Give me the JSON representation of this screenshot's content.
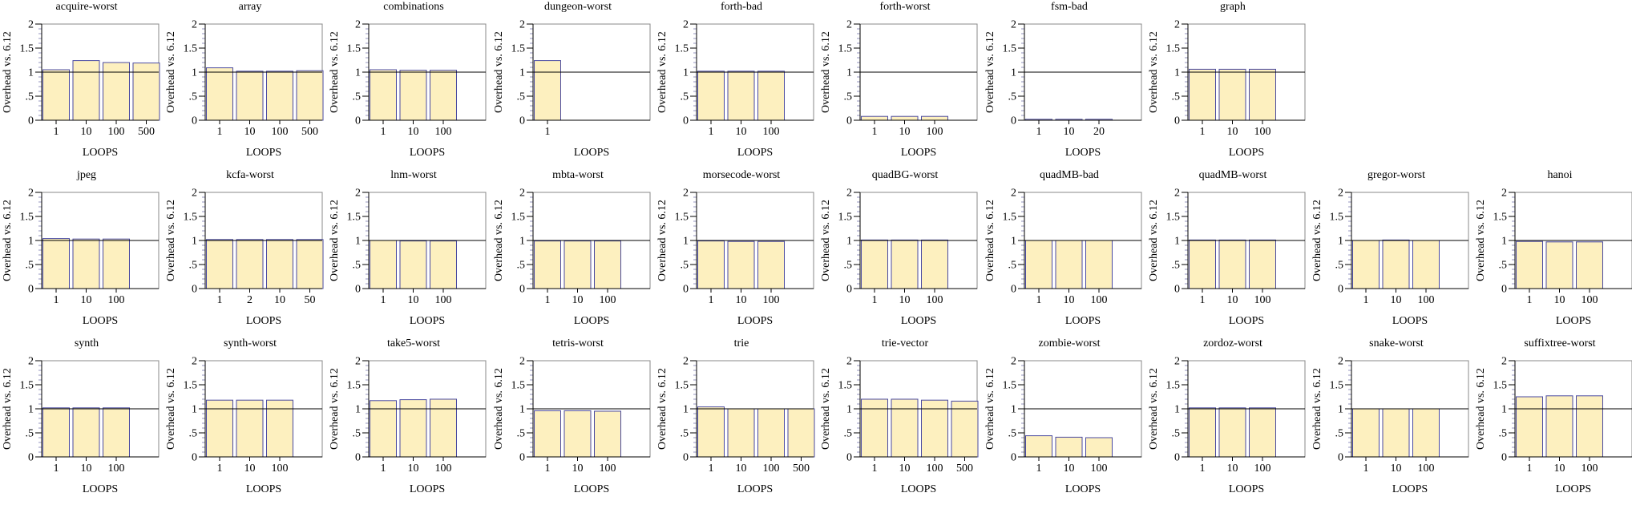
{
  "chart_data": [
    {
      "type": "bar",
      "title": "acquire-worst",
      "xlabel": "LOOPS",
      "ylabel": "Overhead vs. 6.12",
      "ylim": [
        0,
        2
      ],
      "yticks": [
        "0",
        ".5",
        "1",
        "1.5",
        "2"
      ],
      "categories": [
        "1",
        "10",
        "100",
        "500"
      ],
      "values": [
        1.05,
        1.24,
        1.2,
        1.19
      ],
      "reference_line": 1
    },
    {
      "type": "bar",
      "title": "array",
      "xlabel": "LOOPS",
      "ylabel": "Overhead vs. 6.12",
      "ylim": [
        0,
        2
      ],
      "yticks": [
        "0",
        ".5",
        "1",
        "1.5",
        "2"
      ],
      "categories": [
        "1",
        "10",
        "100",
        "500"
      ],
      "values": [
        1.09,
        1.02,
        1.02,
        1.03
      ],
      "reference_line": 1
    },
    {
      "type": "bar",
      "title": "combinations",
      "xlabel": "LOOPS",
      "ylabel": "Overhead vs. 6.12",
      "ylim": [
        0,
        2
      ],
      "yticks": [
        "0",
        ".5",
        "1",
        "1.5",
        "2"
      ],
      "categories": [
        "1",
        "10",
        "100"
      ],
      "values": [
        1.05,
        1.04,
        1.04
      ],
      "reference_line": 1
    },
    {
      "type": "bar",
      "title": "dungeon-worst",
      "xlabel": "LOOPS",
      "ylabel": "Overhead vs. 6.12",
      "ylim": [
        0,
        2
      ],
      "yticks": [
        "0",
        ".5",
        "1",
        "1.5",
        "2"
      ],
      "categories": [
        "1"
      ],
      "values": [
        1.24
      ],
      "reference_line": 1
    },
    {
      "type": "bar",
      "title": "forth-bad",
      "xlabel": "LOOPS",
      "ylabel": "Overhead vs. 6.12",
      "ylim": [
        0,
        2
      ],
      "yticks": [
        "0",
        ".5",
        "1",
        "1.5",
        "2"
      ],
      "categories": [
        "1",
        "10",
        "100"
      ],
      "values": [
        1.02,
        1.02,
        1.02
      ],
      "reference_line": 1
    },
    {
      "type": "bar",
      "title": "forth-worst",
      "xlabel": "LOOPS",
      "ylabel": "Overhead vs. 6.12",
      "ylim": [
        0,
        2
      ],
      "yticks": [
        "0",
        ".5",
        "1",
        "1.5",
        "2"
      ],
      "categories": [
        "1",
        "10",
        "100"
      ],
      "values": [
        0.08,
        0.08,
        0.08
      ],
      "reference_line": 1
    },
    {
      "type": "bar",
      "title": "fsm-bad",
      "xlabel": "LOOPS",
      "ylabel": "Overhead vs. 6.12",
      "ylim": [
        0,
        2
      ],
      "yticks": [
        "0",
        ".5",
        "1",
        "1.5",
        "2"
      ],
      "categories": [
        "1",
        "10",
        "20"
      ],
      "values": [
        0.02,
        0.02,
        0.02
      ],
      "reference_line": 1
    },
    {
      "type": "bar",
      "title": "graph",
      "xlabel": "LOOPS",
      "ylabel": "Overhead vs. 6.12",
      "ylim": [
        0,
        2
      ],
      "yticks": [
        "0",
        ".5",
        "1",
        "1.5",
        "2"
      ],
      "categories": [
        "1",
        "10",
        "100"
      ],
      "values": [
        1.06,
        1.06,
        1.06
      ],
      "reference_line": 1
    },
    {
      "type": "bar",
      "title": "jpeg",
      "xlabel": "LOOPS",
      "ylabel": "Overhead vs. 6.12",
      "ylim": [
        0,
        2
      ],
      "yticks": [
        "0",
        ".5",
        "1",
        "1.5",
        "2"
      ],
      "categories": [
        "1",
        "10",
        "100"
      ],
      "values": [
        1.04,
        1.03,
        1.03
      ],
      "reference_line": 1
    },
    {
      "type": "bar",
      "title": "kcfa-worst",
      "xlabel": "LOOPS",
      "ylabel": "Overhead vs. 6.12",
      "ylim": [
        0,
        2
      ],
      "yticks": [
        "0",
        ".5",
        "1",
        "1.5",
        "2"
      ],
      "categories": [
        "1",
        "2",
        "10",
        "50"
      ],
      "values": [
        1.02,
        1.02,
        1.02,
        1.02
      ],
      "reference_line": 1
    },
    {
      "type": "bar",
      "title": "lnm-worst",
      "xlabel": "LOOPS",
      "ylabel": "Overhead vs. 6.12",
      "ylim": [
        0,
        2
      ],
      "yticks": [
        "0",
        ".5",
        "1",
        "1.5",
        "2"
      ],
      "categories": [
        "1",
        "10",
        "100"
      ],
      "values": [
        1.0,
        0.99,
        0.99
      ],
      "reference_line": 1
    },
    {
      "type": "bar",
      "title": "mbta-worst",
      "xlabel": "LOOPS",
      "ylabel": "Overhead vs. 6.12",
      "ylim": [
        0,
        2
      ],
      "yticks": [
        "0",
        ".5",
        "1",
        "1.5",
        "2"
      ],
      "categories": [
        "1",
        "10",
        "100"
      ],
      "values": [
        0.99,
        0.99,
        0.99
      ],
      "reference_line": 1
    },
    {
      "type": "bar",
      "title": "morsecode-worst",
      "xlabel": "LOOPS",
      "ylabel": "Overhead vs. 6.12",
      "ylim": [
        0,
        2
      ],
      "yticks": [
        "0",
        ".5",
        "1",
        "1.5",
        "2"
      ],
      "categories": [
        "1",
        "10",
        "100"
      ],
      "values": [
        0.99,
        0.98,
        0.98
      ],
      "reference_line": 1
    },
    {
      "type": "bar",
      "title": "quadBG-worst",
      "xlabel": "LOOPS",
      "ylabel": "Overhead vs. 6.12",
      "ylim": [
        0,
        2
      ],
      "yticks": [
        "0",
        ".5",
        "1",
        "1.5",
        "2"
      ],
      "categories": [
        "1",
        "10",
        "100"
      ],
      "values": [
        1.01,
        1.01,
        1.01
      ],
      "reference_line": 1
    },
    {
      "type": "bar",
      "title": "quadMB-bad",
      "xlabel": "LOOPS",
      "ylabel": "Overhead vs. 6.12",
      "ylim": [
        0,
        2
      ],
      "yticks": [
        "0",
        ".5",
        "1",
        "1.5",
        "2"
      ],
      "categories": [
        "1",
        "10",
        "100"
      ],
      "values": [
        1.0,
        1.0,
        1.0
      ],
      "reference_line": 1
    },
    {
      "type": "bar",
      "title": "quadMB-worst",
      "xlabel": "LOOPS",
      "ylabel": "Overhead vs. 6.12",
      "ylim": [
        0,
        2
      ],
      "yticks": [
        "0",
        ".5",
        "1",
        "1.5",
        "2"
      ],
      "categories": [
        "1",
        "10",
        "100"
      ],
      "values": [
        1.01,
        1.01,
        1.01
      ],
      "reference_line": 1
    },
    {
      "type": "bar",
      "title": "gregor-worst",
      "xlabel": "LOOPS",
      "ylabel": "Overhead vs. 6.12",
      "ylim": [
        0,
        2
      ],
      "yticks": [
        "0",
        ".5",
        "1",
        "1.5",
        "2"
      ],
      "categories": [
        "1",
        "10",
        "100"
      ],
      "values": [
        1.0,
        1.01,
        1.0
      ],
      "reference_line": 1
    },
    {
      "type": "bar",
      "title": "hanoi",
      "xlabel": "LOOPS",
      "ylabel": "Overhead vs. 6.12",
      "ylim": [
        0,
        2
      ],
      "yticks": [
        "0",
        ".5",
        "1",
        "1.5",
        "2"
      ],
      "categories": [
        "1",
        "10",
        "100"
      ],
      "values": [
        0.98,
        0.97,
        0.97
      ],
      "reference_line": 1
    },
    {
      "type": "bar",
      "title": "synth",
      "xlabel": "LOOPS",
      "ylabel": "Overhead vs. 6.12",
      "ylim": [
        0,
        2
      ],
      "yticks": [
        "0",
        ".5",
        "1",
        "1.5",
        "2"
      ],
      "categories": [
        "1",
        "10",
        "100"
      ],
      "values": [
        1.02,
        1.02,
        1.02
      ],
      "reference_line": 1
    },
    {
      "type": "bar",
      "title": "synth-worst",
      "xlabel": "LOOPS",
      "ylabel": "Overhead vs. 6.12",
      "ylim": [
        0,
        2
      ],
      "yticks": [
        "0",
        ".5",
        "1",
        "1.5",
        "2"
      ],
      "categories": [
        "1",
        "10",
        "100"
      ],
      "values": [
        1.18,
        1.18,
        1.18
      ],
      "reference_line": 1
    },
    {
      "type": "bar",
      "title": "take5-worst",
      "xlabel": "LOOPS",
      "ylabel": "Overhead vs. 6.12",
      "ylim": [
        0,
        2
      ],
      "yticks": [
        "0",
        ".5",
        "1",
        "1.5",
        "2"
      ],
      "categories": [
        "1",
        "10",
        "100"
      ],
      "values": [
        1.17,
        1.19,
        1.2
      ],
      "reference_line": 1
    },
    {
      "type": "bar",
      "title": "tetris-worst",
      "xlabel": "LOOPS",
      "ylabel": "Overhead vs. 6.12",
      "ylim": [
        0,
        2
      ],
      "yticks": [
        "0",
        ".5",
        "1",
        "1.5",
        "2"
      ],
      "categories": [
        "1",
        "10",
        "100"
      ],
      "values": [
        0.96,
        0.96,
        0.95
      ],
      "reference_line": 1
    },
    {
      "type": "bar",
      "title": "trie",
      "xlabel": "LOOPS",
      "ylabel": "Overhead vs. 6.12",
      "ylim": [
        0,
        2
      ],
      "yticks": [
        "0",
        ".5",
        "1",
        "1.5",
        "2"
      ],
      "categories": [
        "1",
        "10",
        "100",
        "500"
      ],
      "values": [
        1.04,
        1.0,
        1.0,
        1.0
      ],
      "reference_line": 1
    },
    {
      "type": "bar",
      "title": "trie-vector",
      "xlabel": "LOOPS",
      "ylabel": "Overhead vs. 6.12",
      "ylim": [
        0,
        2
      ],
      "yticks": [
        "0",
        ".5",
        "1",
        "1.5",
        "2"
      ],
      "categories": [
        "1",
        "10",
        "100",
        "500"
      ],
      "values": [
        1.2,
        1.2,
        1.18,
        1.16
      ],
      "reference_line": 1
    },
    {
      "type": "bar",
      "title": "zombie-worst",
      "xlabel": "LOOPS",
      "ylabel": "Overhead vs. 6.12",
      "ylim": [
        0,
        2
      ],
      "yticks": [
        "0",
        ".5",
        "1",
        "1.5",
        "2"
      ],
      "categories": [
        "1",
        "10",
        "100"
      ],
      "values": [
        0.44,
        0.41,
        0.4
      ],
      "reference_line": 1
    },
    {
      "type": "bar",
      "title": "zordoz-worst",
      "xlabel": "LOOPS",
      "ylabel": "Overhead vs. 6.12",
      "ylim": [
        0,
        2
      ],
      "yticks": [
        "0",
        ".5",
        "1",
        "1.5",
        "2"
      ],
      "categories": [
        "1",
        "10",
        "100"
      ],
      "values": [
        1.02,
        1.02,
        1.02
      ],
      "reference_line": 1
    },
    {
      "type": "bar",
      "title": "snake-worst",
      "xlabel": "LOOPS",
      "ylabel": "Overhead vs. 6.12",
      "ylim": [
        0,
        2
      ],
      "yticks": [
        "0",
        ".5",
        "1",
        "1.5",
        "2"
      ],
      "categories": [
        "1",
        "10",
        "100"
      ],
      "values": [
        1.0,
        1.0,
        1.0
      ],
      "reference_line": 1
    },
    {
      "type": "bar",
      "title": "suffixtree-worst",
      "xlabel": "LOOPS",
      "ylabel": "Overhead vs. 6.12",
      "ylim": [
        0,
        2
      ],
      "yticks": [
        "0",
        ".5",
        "1",
        "1.5",
        "2"
      ],
      "categories": [
        "1",
        "10",
        "100"
      ],
      "values": [
        1.25,
        1.27,
        1.27
      ],
      "reference_line": 1
    }
  ],
  "colors": {
    "bar_fill": "#fdf0bf",
    "bar_stroke": "#4a4aa0",
    "axis": "#000000",
    "frame": "#888888",
    "minor_tick": "#7a7ab0",
    "reference_line": "#000000"
  }
}
